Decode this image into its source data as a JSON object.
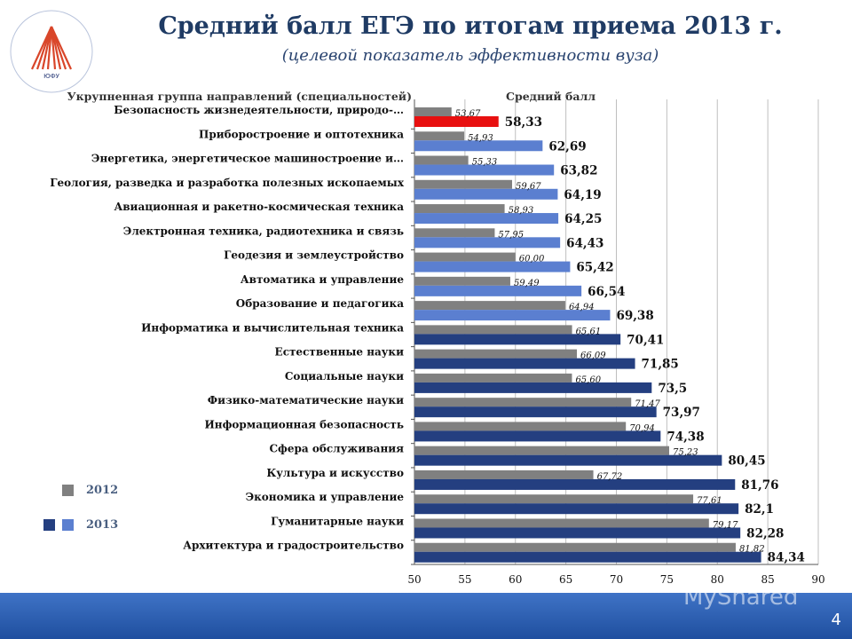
{
  "header": {
    "title": "Средний балл ЕГЭ по итогам приема 2013 г.",
    "subtitle": "(целевой показатель эффективности вуза)",
    "logo_text": "ЮЖНЫЙ ФЕДЕРАЛЬНЫЙ УНИВЕРСИТЕТ ЮФУ"
  },
  "footer": {
    "page_number": "4",
    "watermark": "MyShared"
  },
  "colors": {
    "gray_2012": "#808080",
    "light_blue_2013": "#5b7fd0",
    "dark_blue_2013": "#243f80",
    "red_highlight": "#e81010"
  },
  "chart_data": {
    "type": "bar",
    "orientation": "horizontal",
    "category_header": "Укрупненная группа направлений (специальностей)",
    "value_header": "Средний балл",
    "xlim": [
      50,
      90
    ],
    "xticks": [
      50,
      55,
      60,
      65,
      70,
      75,
      80,
      85,
      90
    ],
    "grid": true,
    "legend_position": "left",
    "categories": [
      "Безопасность жизнедеятельности, природо-…",
      "Приборостроение и оптотехника",
      "Энергетика, энергетическое машиностроение и…",
      "Геология, разведка и разработка полезных ископаемых",
      "Авиационная и ракетно-космическая техника",
      "Электронная техника, радиотехника и связь",
      "Геодезия и землеустройство",
      "Автоматика и управление",
      "Образование и педагогика",
      "Информатика и вычислительная техника",
      "Естественные науки",
      "Социальные науки",
      "Физико-математические науки",
      "Информационная безопасность",
      "Сфера обслуживания",
      "Культура и искусство",
      "Экономика и управление",
      "Гуманитарные науки",
      "Архитектура и градостроительство"
    ],
    "series": [
      {
        "name": "2012",
        "values": [
          53.67,
          54.93,
          55.33,
          59.67,
          58.93,
          57.95,
          60.0,
          59.49,
          64.94,
          65.61,
          66.09,
          65.6,
          71.47,
          70.94,
          75.23,
          67.72,
          77.61,
          79.17,
          81.82
        ],
        "labels": [
          "53,67",
          "54,93",
          "55,33",
          "59,67",
          "58,93",
          "57,95",
          "60,00",
          "59,49",
          "64,94",
          "65,61",
          "66,09",
          "65,60",
          "71,47",
          "70,94",
          "75,23",
          "67,72",
          "77,61",
          "79,17",
          "81,82"
        ]
      },
      {
        "name": "2013",
        "values": [
          58.33,
          62.69,
          63.82,
          64.19,
          64.25,
          64.43,
          65.42,
          66.54,
          69.38,
          70.41,
          71.85,
          73.5,
          73.97,
          74.38,
          80.45,
          81.76,
          82.1,
          82.28,
          84.34
        ],
        "labels": [
          "58,33",
          "62,69",
          "63,82",
          "64,19",
          "64,25",
          "64,43",
          "65,42",
          "66,54",
          "69,38",
          "70,41",
          "71,85",
          "73,5",
          "73,97",
          "74,38",
          "80,45",
          "81,76",
          "82,1",
          "82,28",
          "84,34"
        ],
        "bar_colors": [
          "red",
          "light",
          "light",
          "light",
          "light",
          "light",
          "light",
          "light",
          "light",
          "dark",
          "dark",
          "dark",
          "dark",
          "dark",
          "dark",
          "dark",
          "dark",
          "dark",
          "dark"
        ]
      }
    ]
  }
}
